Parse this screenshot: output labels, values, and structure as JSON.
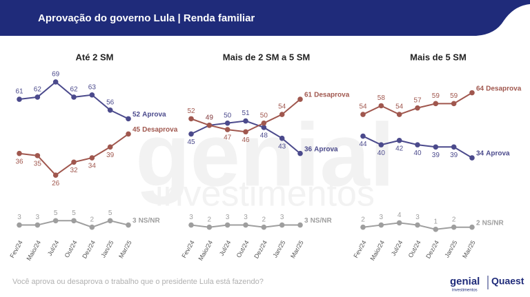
{
  "header": {
    "title": "Aprovação do governo Lula | Renda familiar"
  },
  "footer": {
    "question": "Você aprova ou desaprova o trabalho que o presidente Lula está fazendo?"
  },
  "branding": {
    "genial": "genial",
    "genial_sub": "investimentos",
    "quaest": "Quaest"
  },
  "watermark": {
    "word": "genial",
    "sub": "investimentos"
  },
  "chart_data": [
    {
      "type": "line",
      "title": "Até 2 SM",
      "categories": [
        "Fev/24",
        "Maio/24",
        "Jul/24",
        "Out/24",
        "Dez/24",
        "Jan/25",
        "Mar/25"
      ],
      "ylim": [
        0,
        75
      ],
      "series": [
        {
          "name": "Aprova",
          "color": "#4b4a8c",
          "values": [
            61,
            62,
            69,
            62,
            63,
            56,
            52
          ]
        },
        {
          "name": "Desaprova",
          "color": "#a0574e",
          "values": [
            36,
            35,
            26,
            32,
            34,
            39,
            45
          ]
        },
        {
          "name": "NS/NR",
          "color": "#9e9e9e",
          "values": [
            3,
            3,
            5,
            5,
            2,
            5,
            3
          ]
        }
      ]
    },
    {
      "type": "line",
      "title": "Mais de 2 SM a 5 SM",
      "categories": [
        "Fev/24",
        "Maio/24",
        "Jul/24",
        "Out/24",
        "Dez/24",
        "Jan/25",
        "Mar/25"
      ],
      "ylim": [
        0,
        75
      ],
      "series": [
        {
          "name": "Aprova",
          "color": "#4b4a8c",
          "values": [
            45,
            49,
            50,
            51,
            48,
            43,
            36
          ]
        },
        {
          "name": "Desaprova",
          "color": "#a0574e",
          "values": [
            52,
            49,
            47,
            46,
            50,
            54,
            61
          ]
        },
        {
          "name": "NS/NR",
          "color": "#9e9e9e",
          "values": [
            3,
            2,
            3,
            3,
            2,
            3,
            3
          ]
        }
      ]
    },
    {
      "type": "line",
      "title": "Mais de 5 SM",
      "categories": [
        "Fev/24",
        "Maio/24",
        "Jul/24",
        "Out/24",
        "Dez/24",
        "Jan/25",
        "Mar/25"
      ],
      "ylim": [
        0,
        75
      ],
      "series": [
        {
          "name": "Aprova",
          "color": "#4b4a8c",
          "values": [
            44,
            40,
            42,
            40,
            39,
            39,
            34
          ]
        },
        {
          "name": "Desaprova",
          "color": "#a0574e",
          "values": [
            54,
            58,
            54,
            57,
            59,
            59,
            64
          ]
        },
        {
          "name": "NS/NR",
          "color": "#9e9e9e",
          "values": [
            2,
            3,
            4,
            3,
            1,
            2,
            2
          ]
        }
      ]
    }
  ]
}
